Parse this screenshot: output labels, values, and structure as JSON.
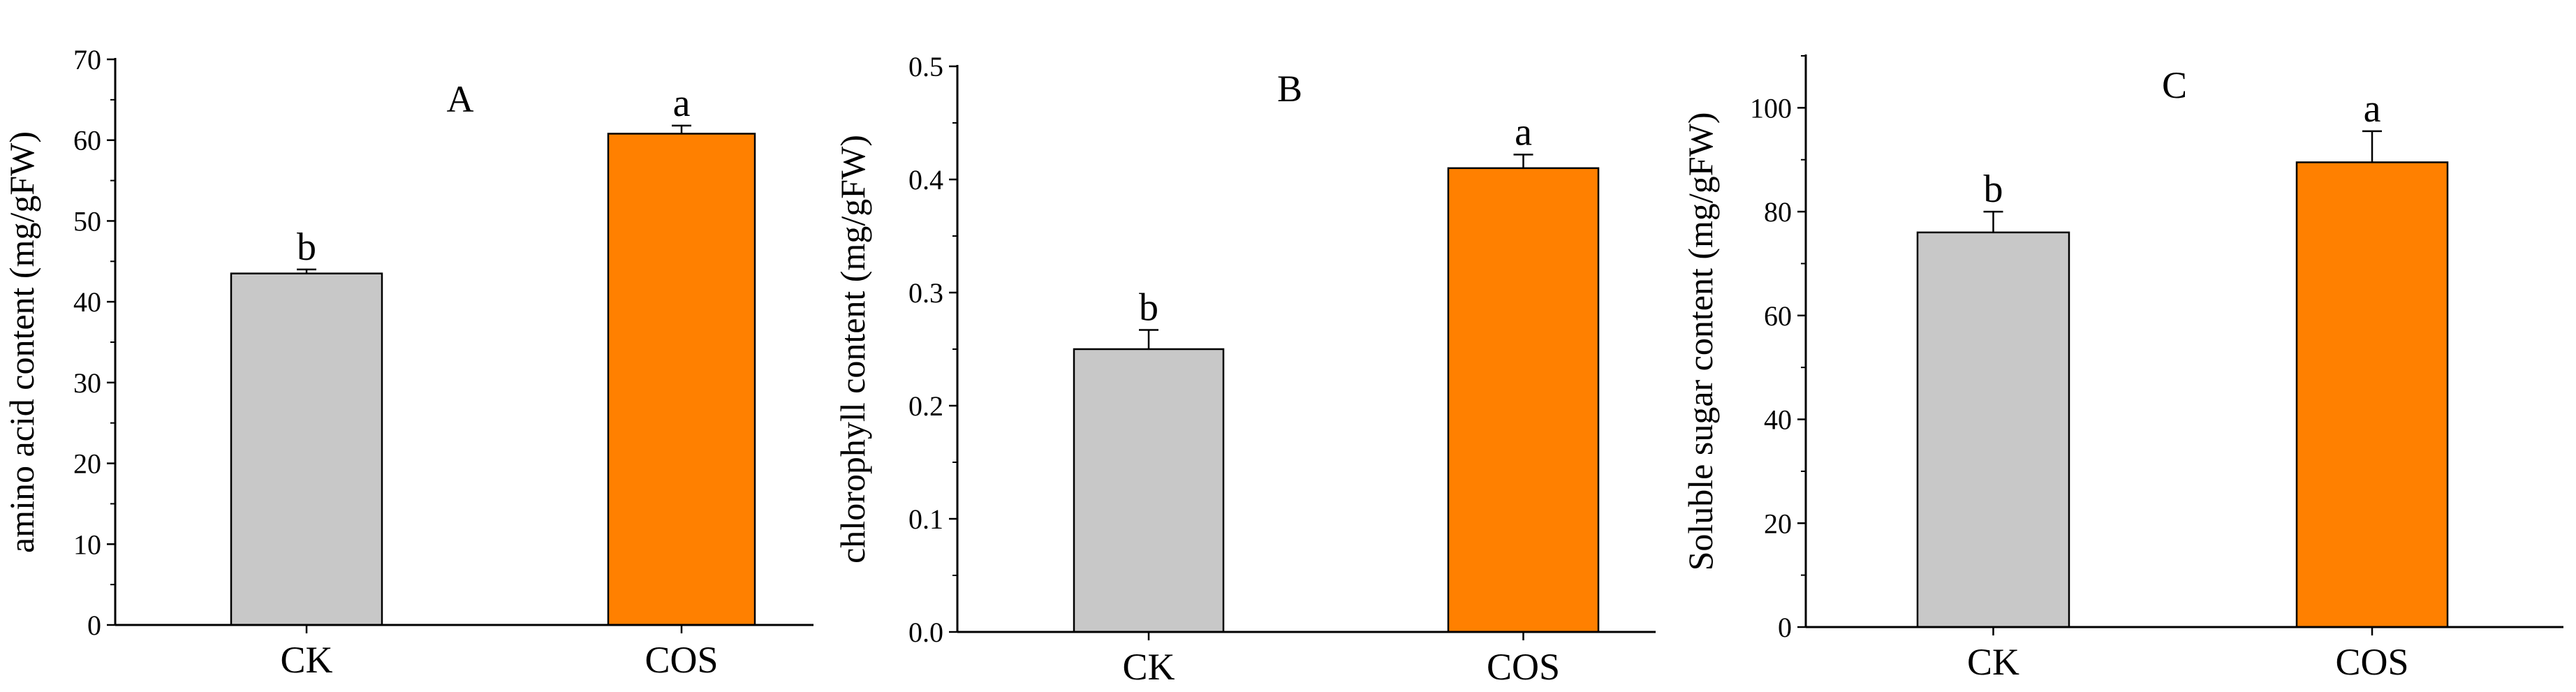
{
  "chart_data": [
    {
      "type": "bar",
      "panel_label": "A",
      "ylabel": "amino acid content (mg/gFW)",
      "categories": [
        "CK",
        "COS"
      ],
      "values": [
        43.5,
        60.8
      ],
      "errors": [
        0.5,
        1.0
      ],
      "significance": [
        "b",
        "a"
      ],
      "bar_colors": [
        "#c8c8c8",
        "#ff8000"
      ],
      "ylim": [
        0,
        70
      ],
      "yticks": [
        0,
        10,
        20,
        30,
        40,
        50,
        60,
        70
      ],
      "ytick_labels": [
        "0",
        "10",
        "20",
        "30",
        "40",
        "50",
        "60",
        "70"
      ]
    },
    {
      "type": "bar",
      "panel_label": "B",
      "ylabel": "chlorophyll content (mg/gFW)",
      "categories": [
        "CK",
        "COS"
      ],
      "values": [
        0.25,
        0.41
      ],
      "errors": [
        0.017,
        0.012
      ],
      "significance": [
        "b",
        "a"
      ],
      "bar_colors": [
        "#c8c8c8",
        "#ff8000"
      ],
      "ylim": [
        0,
        0.5
      ],
      "yticks": [
        0,
        0.1,
        0.2,
        0.3,
        0.4,
        0.5
      ],
      "ytick_labels": [
        "0.0",
        "0.1",
        "0.2",
        "0.3",
        "0.4",
        "0.5"
      ]
    },
    {
      "type": "bar",
      "panel_label": "C",
      "ylabel": "Soluble sugar content (mg/gFW)",
      "categories": [
        "CK",
        "COS"
      ],
      "values": [
        76,
        89.5
      ],
      "errors": [
        4,
        6
      ],
      "significance": [
        "b",
        "a"
      ],
      "bar_colors": [
        "#c8c8c8",
        "#ff8000"
      ],
      "ylim": [
        0,
        110
      ],
      "yticks": [
        0,
        20,
        40,
        60,
        80,
        100
      ],
      "ytick_labels": [
        "0",
        "20",
        "40",
        "60",
        "80",
        "100"
      ]
    }
  ]
}
